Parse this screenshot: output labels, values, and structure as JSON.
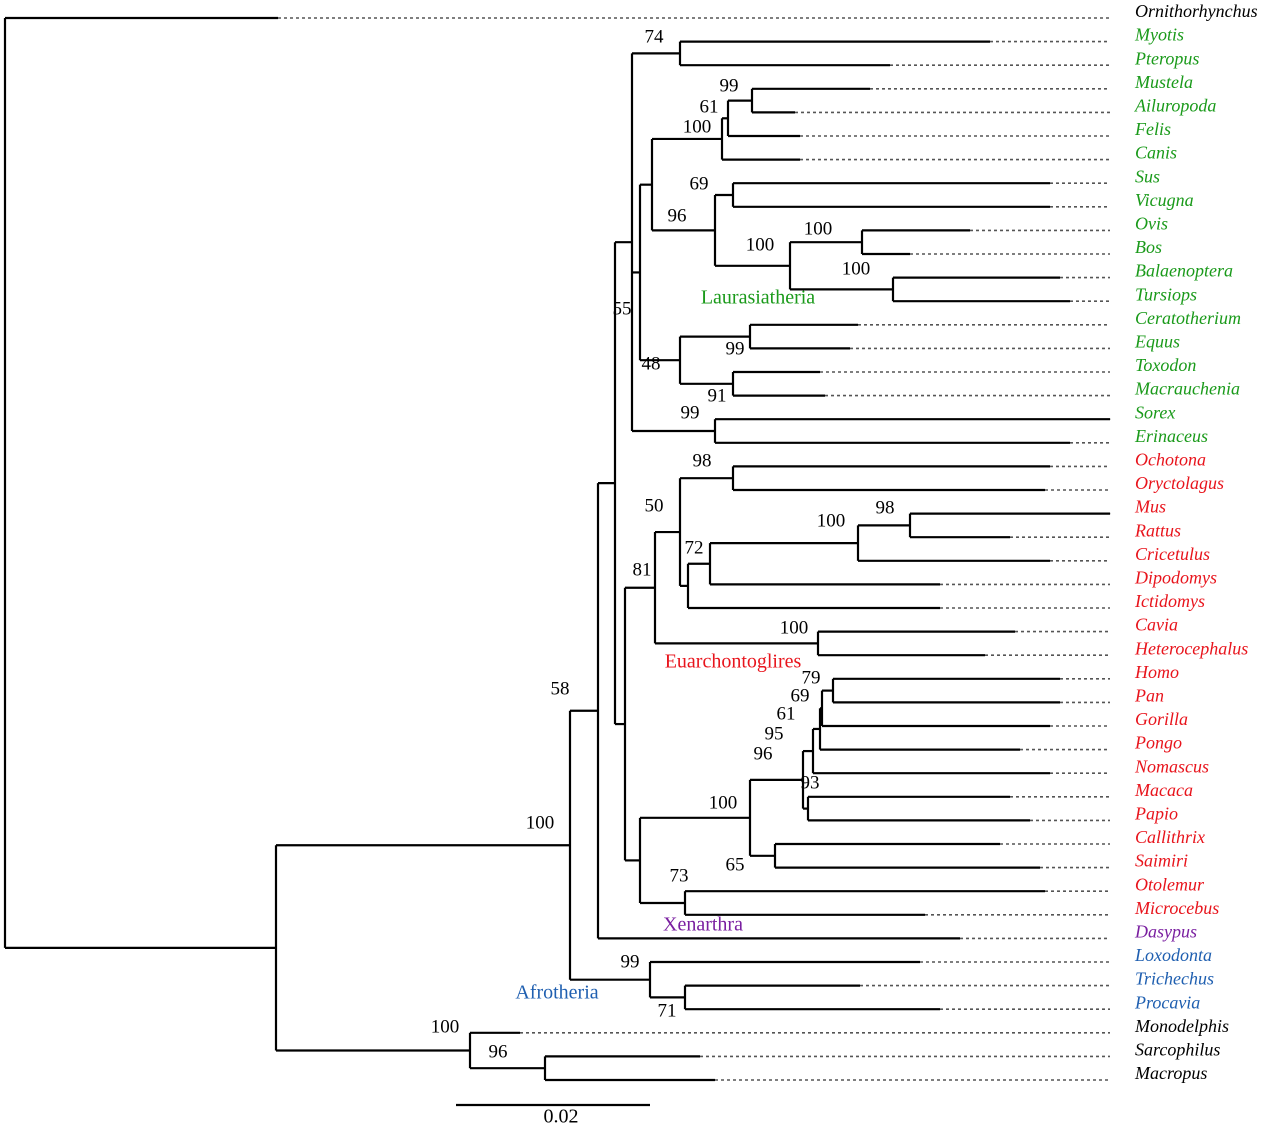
{
  "taxa": [
    "Ornithorhynchus",
    "Myotis",
    "Pteropus",
    "Mustela",
    "Ailuropoda",
    "Felis",
    "Canis",
    "Sus",
    "Vicugna",
    "Ovis",
    "Bos",
    "Balaenoptera",
    "Tursiops",
    "Ceratotherium",
    "Equus",
    "Toxodon",
    "Macrauchenia",
    "Sorex",
    "Erinaceus",
    "Ochotona",
    "Oryctolagus",
    "Mus",
    "Rattus",
    "Cricetulus",
    "Dipodomys",
    "Ictidomys",
    "Cavia",
    "Heterocephalus",
    "Homo",
    "Pan",
    "Gorilla",
    "Pongo",
    "Nomascus",
    "Macaca",
    "Papio",
    "Callithrix",
    "Saimiri",
    "Otolemur",
    "Microcebus",
    "Dasypus",
    "Loxodonta",
    "Trichechus",
    "Procavia",
    "Monodelphis",
    "Sarcophilus",
    "Macropus"
  ],
  "bootstrap": [
    74,
    99,
    61,
    100,
    69,
    96,
    100,
    100,
    100,
    55,
    99,
    48,
    91,
    99,
    98,
    50,
    100,
    98,
    72,
    81,
    100,
    58,
    79,
    69,
    61,
    95,
    96,
    93,
    100,
    65,
    73,
    100,
    99,
    71,
    100,
    96
  ],
  "clades": [
    "Laurasiatheria",
    "Euarchontoglires",
    "Xenarthra",
    "Afrotheria"
  ],
  "scale_bar": "0.02"
}
